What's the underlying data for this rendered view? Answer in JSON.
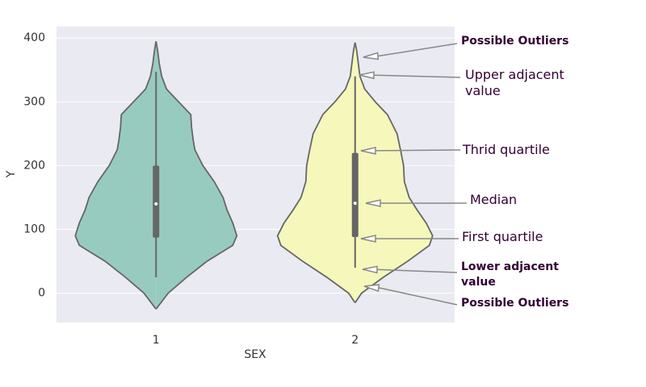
{
  "chart_data": {
    "type": "violin",
    "x_label": "SEX",
    "y_label": "Y",
    "categories": [
      "1",
      "2"
    ],
    "ylim": [
      -46,
      418
    ],
    "yticks": [
      0,
      100,
      200,
      300,
      400
    ],
    "grid": true,
    "background": "#eaeaf2",
    "outline_color": "#666666",
    "series": [
      {
        "color": "#98cbc0",
        "lower": 25,
        "q1": 87,
        "median": 140,
        "q3": 200,
        "upper": 347,
        "density_y": [
          -25,
          0,
          25,
          50,
          75,
          90,
          110,
          130,
          150,
          175,
          200,
          225,
          240,
          260,
          280,
          300,
          320,
          340,
          360,
          380,
          395
        ],
        "density": [
          0,
          0.15,
          0.38,
          0.63,
          0.95,
          1,
          0.95,
          0.88,
          0.83,
          0.72,
          0.58,
          0.48,
          0.46,
          0.44,
          0.43,
          0.28,
          0.13,
          0.07,
          0.04,
          0.02,
          0
        ]
      },
      {
        "color": "#f6f7bb",
        "lower": 40,
        "q1": 88,
        "median": 141,
        "q3": 220,
        "upper": 340,
        "density_y": [
          -15,
          0,
          25,
          50,
          75,
          90,
          110,
          130,
          150,
          175,
          200,
          220,
          250,
          280,
          300,
          320,
          340,
          360,
          380,
          393
        ],
        "density": [
          0,
          0.08,
          0.35,
          0.65,
          0.92,
          0.96,
          0.88,
          0.77,
          0.67,
          0.61,
          0.6,
          0.57,
          0.52,
          0.4,
          0.25,
          0.12,
          0.06,
          0.04,
          0.02,
          0
        ]
      }
    ],
    "annotations": [
      "Possible Outliers",
      "Upper adjacent value",
      "Thrid quartile",
      "Median",
      "First quartile",
      "Lower adjacent value",
      "Possible Outliers"
    ],
    "annotation_color": "#330033"
  }
}
